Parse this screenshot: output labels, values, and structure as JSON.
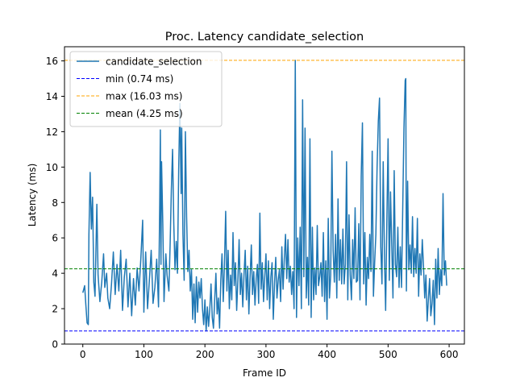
{
  "chart_data": {
    "type": "line",
    "title": "Proc. Latency candidate_selection",
    "xlabel": "Frame ID",
    "ylabel": "Latency (ms)",
    "xlim": [
      -30,
      625
    ],
    "ylim": [
      0,
      16.8
    ],
    "xticks": [
      0,
      100,
      200,
      300,
      400,
      500,
      600
    ],
    "yticks": [
      0,
      2,
      4,
      6,
      8,
      10,
      12,
      14,
      16
    ],
    "legend_position": "top-left",
    "grid": false,
    "series": [
      {
        "name": "candidate_selection",
        "color": "#1f77b4",
        "style": "solid",
        "points": [
          [
            0,
            2.9
          ],
          [
            3,
            3.3
          ],
          [
            5,
            2.2
          ],
          [
            7,
            1.2
          ],
          [
            9,
            1.1
          ],
          [
            10,
            6.2
          ],
          [
            12,
            9.7
          ],
          [
            14,
            6.5
          ],
          [
            16,
            8.3
          ],
          [
            18,
            3.5
          ],
          [
            20,
            2.7
          ],
          [
            23,
            7.9
          ],
          [
            25,
            3.9
          ],
          [
            28,
            2.4
          ],
          [
            31,
            3.5
          ],
          [
            34,
            5.1
          ],
          [
            36,
            3.2
          ],
          [
            39,
            4.0
          ],
          [
            41,
            2.6
          ],
          [
            44,
            2.0
          ],
          [
            47,
            3.4
          ],
          [
            50,
            5.2
          ],
          [
            53,
            2.8
          ],
          [
            56,
            4.5
          ],
          [
            59,
            3.0
          ],
          [
            62,
            5.3
          ],
          [
            65,
            1.9
          ],
          [
            68,
            3.8
          ],
          [
            71,
            4.8
          ],
          [
            74,
            2.1
          ],
          [
            77,
            4.0
          ],
          [
            80,
            1.6
          ],
          [
            83,
            3.7
          ],
          [
            86,
            2.2
          ],
          [
            89,
            4.3
          ],
          [
            92,
            3.0
          ],
          [
            95,
            4.8
          ],
          [
            98,
            7.0
          ],
          [
            100,
            1.8
          ],
          [
            103,
            5.2
          ],
          [
            106,
            2.0
          ],
          [
            109,
            3.6
          ],
          [
            112,
            5.3
          ],
          [
            115,
            2.3
          ],
          [
            118,
            3.2
          ],
          [
            121,
            4.8
          ],
          [
            124,
            2.1
          ],
          [
            126,
            8.0
          ],
          [
            127,
            12.1
          ],
          [
            128,
            4.5
          ],
          [
            129,
            10.3
          ],
          [
            131,
            6.8
          ],
          [
            133,
            2.4
          ],
          [
            136,
            5.1
          ],
          [
            138,
            3.9
          ],
          [
            141,
            3.0
          ],
          [
            143,
            5.6
          ],
          [
            145,
            8.7
          ],
          [
            147,
            11.0
          ],
          [
            149,
            6.8
          ],
          [
            151,
            4.2
          ],
          [
            153,
            5.8
          ],
          [
            155,
            4.0
          ],
          [
            157,
            9.8
          ],
          [
            159,
            13.6
          ],
          [
            161,
            8.5
          ],
          [
            162,
            12.2
          ],
          [
            164,
            6.2
          ],
          [
            166,
            3.6
          ],
          [
            168,
            12.0
          ],
          [
            170,
            7.2
          ],
          [
            172,
            4.1
          ],
          [
            174,
            5.3
          ],
          [
            176,
            3.0
          ],
          [
            178,
            4.2
          ],
          [
            180,
            1.4
          ],
          [
            182,
            3.4
          ],
          [
            184,
            1.2
          ],
          [
            186,
            3.8
          ],
          [
            188,
            1.8
          ],
          [
            190,
            3.5
          ],
          [
            192,
            2.6
          ],
          [
            194,
            3.7
          ],
          [
            196,
            2.0
          ],
          [
            198,
            1.1
          ],
          [
            200,
            2.5
          ],
          [
            202,
            0.74
          ],
          [
            204,
            2.1
          ],
          [
            206,
            1.0
          ],
          [
            208,
            2.0
          ],
          [
            210,
            3.4
          ],
          [
            212,
            1.5
          ],
          [
            214,
            0.9
          ],
          [
            216,
            2.5
          ],
          [
            218,
            4.0
          ],
          [
            220,
            1.7
          ],
          [
            222,
            2.6
          ],
          [
            224,
            0.9
          ],
          [
            226,
            3.6
          ],
          [
            228,
            5.1
          ],
          [
            230,
            2.4
          ],
          [
            232,
            4.5
          ],
          [
            234,
            7.5
          ],
          [
            236,
            3.0
          ],
          [
            238,
            5.3
          ],
          [
            240,
            2.0
          ],
          [
            242,
            3.9
          ],
          [
            244,
            2.5
          ],
          [
            246,
            6.3
          ],
          [
            248,
            3.3
          ],
          [
            250,
            4.6
          ],
          [
            252,
            1.9
          ],
          [
            254,
            3.6
          ],
          [
            256,
            5.9
          ],
          [
            258,
            2.8
          ],
          [
            260,
            4.0
          ],
          [
            262,
            2.1
          ],
          [
            264,
            3.9
          ],
          [
            266,
            5.3
          ],
          [
            268,
            2.5
          ],
          [
            270,
            4.4
          ],
          [
            272,
            1.7
          ],
          [
            274,
            3.8
          ],
          [
            276,
            5.6
          ],
          [
            278,
            2.8
          ],
          [
            280,
            4.1
          ],
          [
            282,
            2.2
          ],
          [
            284,
            3.7
          ],
          [
            286,
            4.5
          ],
          [
            288,
            2.3
          ],
          [
            290,
            7.4
          ],
          [
            292,
            3.1
          ],
          [
            294,
            4.6
          ],
          [
            296,
            2.4
          ],
          [
            298,
            3.8
          ],
          [
            300,
            5.1
          ],
          [
            302,
            2.5
          ],
          [
            304,
            4.7
          ],
          [
            306,
            2.0
          ],
          [
            308,
            3.8
          ],
          [
            310,
            4.6
          ],
          [
            312,
            1.4
          ],
          [
            314,
            3.4
          ],
          [
            316,
            4.9
          ],
          [
            318,
            2.6
          ],
          [
            320,
            3.6
          ],
          [
            322,
            4.2
          ],
          [
            324,
            2.4
          ],
          [
            326,
            5.5
          ],
          [
            328,
            3.1
          ],
          [
            330,
            4.8
          ],
          [
            332,
            6.2
          ],
          [
            334,
            3.7
          ],
          [
            336,
            5.9
          ],
          [
            338,
            3.5
          ],
          [
            340,
            4.4
          ],
          [
            342,
            2.8
          ],
          [
            344,
            4.1
          ],
          [
            346,
            2.0
          ],
          [
            348,
            16.03
          ],
          [
            350,
            1.5
          ],
          [
            352,
            6.0
          ],
          [
            354,
            3.3
          ],
          [
            356,
            6.6
          ],
          [
            358,
            2.0
          ],
          [
            360,
            13.8
          ],
          [
            362,
            3.8
          ],
          [
            364,
            12.2
          ],
          [
            366,
            2.6
          ],
          [
            368,
            4.9
          ],
          [
            370,
            2.2
          ],
          [
            372,
            11.6
          ],
          [
            374,
            1.5
          ],
          [
            376,
            6.6
          ],
          [
            378,
            2.5
          ],
          [
            380,
            4.3
          ],
          [
            382,
            2.8
          ],
          [
            384,
            6.7
          ],
          [
            386,
            3.3
          ],
          [
            388,
            3.8
          ],
          [
            390,
            4.6
          ],
          [
            392,
            2.7
          ],
          [
            394,
            6.3
          ],
          [
            396,
            2.4
          ],
          [
            398,
            4.7
          ],
          [
            400,
            1.4
          ],
          [
            402,
            7.1
          ],
          [
            404,
            2.6
          ],
          [
            406,
            3.9
          ],
          [
            408,
            10.9
          ],
          [
            410,
            5.3
          ],
          [
            412,
            3.5
          ],
          [
            414,
            6.2
          ],
          [
            416,
            2.6
          ],
          [
            418,
            8.2
          ],
          [
            420,
            3.6
          ],
          [
            422,
            5.9
          ],
          [
            424,
            3.4
          ],
          [
            426,
            6.5
          ],
          [
            428,
            3.4
          ],
          [
            430,
            4.5
          ],
          [
            432,
            10.3
          ],
          [
            434,
            2.5
          ],
          [
            436,
            7.3
          ],
          [
            438,
            3.9
          ],
          [
            440,
            2.5
          ],
          [
            442,
            5.9
          ],
          [
            444,
            3.7
          ],
          [
            446,
            7.7
          ],
          [
            448,
            3.5
          ],
          [
            450,
            3.6
          ],
          [
            452,
            6.8
          ],
          [
            454,
            2.5
          ],
          [
            456,
            9.5
          ],
          [
            458,
            12.5
          ],
          [
            460,
            3.4
          ],
          [
            462,
            6.3
          ],
          [
            464,
            2.2
          ],
          [
            466,
            4.9
          ],
          [
            468,
            3.7
          ],
          [
            470,
            6.2
          ],
          [
            472,
            4.1
          ],
          [
            474,
            10.9
          ],
          [
            476,
            2.7
          ],
          [
            478,
            4.6
          ],
          [
            480,
            6.2
          ],
          [
            482,
            10.0
          ],
          [
            484,
            12.6
          ],
          [
            486,
            13.9
          ],
          [
            488,
            5.5
          ],
          [
            490,
            3.4
          ],
          [
            492,
            10.3
          ],
          [
            494,
            5.1
          ],
          [
            496,
            1.9
          ],
          [
            498,
            7.0
          ],
          [
            500,
            11.6
          ],
          [
            502,
            3.6
          ],
          [
            504,
            8.6
          ],
          [
            506,
            5.6
          ],
          [
            508,
            2.6
          ],
          [
            510,
            9.8
          ],
          [
            512,
            4.5
          ],
          [
            514,
            3.8
          ],
          [
            516,
            6.6
          ],
          [
            518,
            3.2
          ],
          [
            520,
            5.5
          ],
          [
            522,
            3.2
          ],
          [
            524,
            7.7
          ],
          [
            526,
            12.2
          ],
          [
            528,
            14.9
          ],
          [
            529,
            15.0
          ],
          [
            530,
            3.0
          ],
          [
            532,
            9.2
          ],
          [
            534,
            4.2
          ],
          [
            536,
            5.6
          ],
          [
            538,
            4.0
          ],
          [
            540,
            7.2
          ],
          [
            542,
            3.8
          ],
          [
            544,
            5.4
          ],
          [
            546,
            4.0
          ],
          [
            548,
            7.1
          ],
          [
            550,
            2.7
          ],
          [
            552,
            5.1
          ],
          [
            554,
            3.9
          ],
          [
            556,
            5.9
          ],
          [
            558,
            4.4
          ],
          [
            560,
            2.6
          ],
          [
            562,
            3.9
          ],
          [
            564,
            1.3
          ],
          [
            566,
            2.5
          ],
          [
            568,
            3.7
          ],
          [
            570,
            1.6
          ],
          [
            572,
            2.3
          ],
          [
            574,
            3.6
          ],
          [
            576,
            1.1
          ],
          [
            578,
            4.8
          ],
          [
            580,
            2.6
          ],
          [
            582,
            5.4
          ],
          [
            584,
            2.8
          ],
          [
            586,
            4.2
          ],
          [
            588,
            3.3
          ],
          [
            590,
            8.5
          ],
          [
            592,
            3.9
          ],
          [
            594,
            4.7
          ],
          [
            596,
            3.3
          ]
        ]
      },
      {
        "name": "min (0.74 ms)",
        "color": "#0000ff",
        "style": "dashed",
        "y": 0.74
      },
      {
        "name": "max (16.03 ms)",
        "color": "#ffa500",
        "style": "dashed",
        "y": 16.03
      },
      {
        "name": "mean (4.25 ms)",
        "color": "#008000",
        "style": "dashed",
        "y": 4.25
      }
    ]
  }
}
